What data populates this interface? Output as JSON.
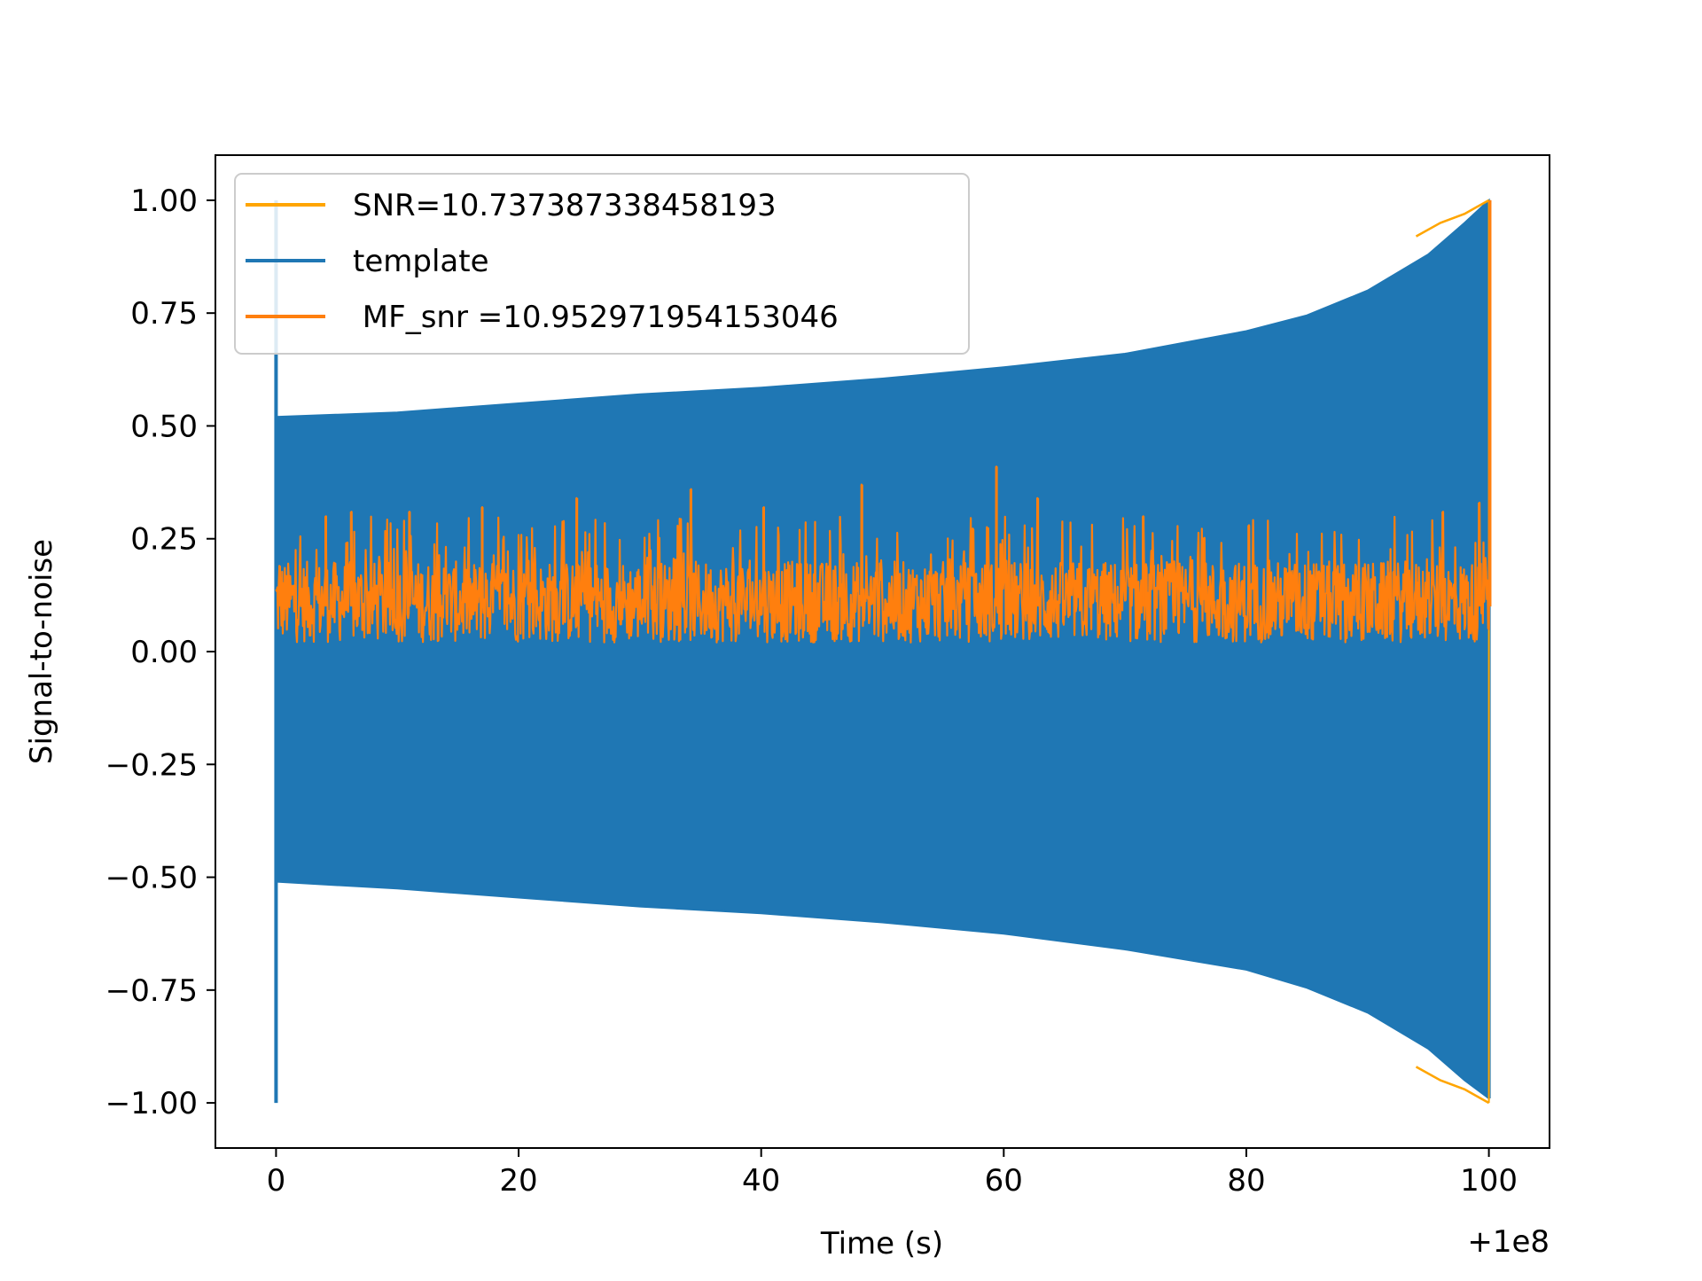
{
  "chart_data": {
    "type": "line",
    "xlabel": "Time (s)",
    "ylabel": "Signal-to-noise",
    "x_offset_label": "+1e8",
    "xlim": [
      -5,
      105
    ],
    "ylim": [
      -1.1,
      1.1
    ],
    "xticks": [
      {
        "value": 0,
        "label": "0"
      },
      {
        "value": 20,
        "label": "20"
      },
      {
        "value": 40,
        "label": "40"
      },
      {
        "value": 60,
        "label": "60"
      },
      {
        "value": 80,
        "label": "80"
      },
      {
        "value": 100,
        "label": "100"
      }
    ],
    "yticks": [
      {
        "value": 1.0,
        "label": "1.00"
      },
      {
        "value": 0.75,
        "label": "0.75"
      },
      {
        "value": 0.5,
        "label": "0.50"
      },
      {
        "value": 0.25,
        "label": "0.25"
      },
      {
        "value": 0.0,
        "label": "0.00"
      },
      {
        "value": -0.25,
        "label": "−0.25"
      },
      {
        "value": -0.5,
        "label": "−0.50"
      },
      {
        "value": -0.75,
        "label": "−0.75"
      },
      {
        "value": -1.0,
        "label": "−1.00"
      }
    ],
    "grid": false,
    "legend_position": "top-left",
    "series": [
      {
        "name": "template",
        "color": "#1f77b4",
        "kind": "band",
        "x": [
          0,
          10,
          20,
          30,
          40,
          50,
          60,
          70,
          80,
          85,
          90,
          95,
          98,
          100
        ],
        "upper": [
          0.52,
          0.53,
          0.55,
          0.57,
          0.585,
          0.605,
          0.63,
          0.66,
          0.71,
          0.745,
          0.8,
          0.88,
          0.95,
          1.0
        ],
        "lower": [
          -0.51,
          -0.525,
          -0.545,
          -0.565,
          -0.58,
          -0.6,
          -0.625,
          -0.66,
          -0.705,
          -0.745,
          -0.8,
          -0.88,
          -0.95,
          -0.99
        ],
        "edge_spike": {
          "x": 0,
          "max": 1.0,
          "min": -1.0
        }
      },
      {
        "name": "SNR=10.737387338458193",
        "color": "#ffa500",
        "kind": "envelope",
        "x": [
          94,
          96,
          98,
          99,
          100
        ],
        "upper": [
          0.92,
          0.95,
          0.97,
          0.985,
          1.0
        ],
        "lower": [
          -0.92,
          -0.95,
          -0.97,
          -0.985,
          -1.0
        ]
      },
      {
        "name": " MF_snr =10.952971954153046",
        "color": "#ff7f0e",
        "kind": "noise",
        "x_range": [
          0,
          100
        ],
        "baseline_min": 0.0,
        "baseline_max": 0.2,
        "peaks": [
          {
            "x": 0.3,
            "y": 0.19
          },
          {
            "x": 4.1,
            "y": 0.3
          },
          {
            "x": 6.2,
            "y": 0.31
          },
          {
            "x": 11,
            "y": 0.31
          },
          {
            "x": 17,
            "y": 0.32
          },
          {
            "x": 24.8,
            "y": 0.34
          },
          {
            "x": 34.2,
            "y": 0.36
          },
          {
            "x": 40.2,
            "y": 0.32
          },
          {
            "x": 48.3,
            "y": 0.37
          },
          {
            "x": 59.4,
            "y": 0.41
          },
          {
            "x": 62.8,
            "y": 0.34
          },
          {
            "x": 71.5,
            "y": 0.3
          },
          {
            "x": 80.2,
            "y": 0.28
          },
          {
            "x": 96.2,
            "y": 0.31
          },
          {
            "x": 99.2,
            "y": 0.33
          },
          {
            "x": 100.1,
            "y": 1.0
          }
        ]
      }
    ]
  }
}
